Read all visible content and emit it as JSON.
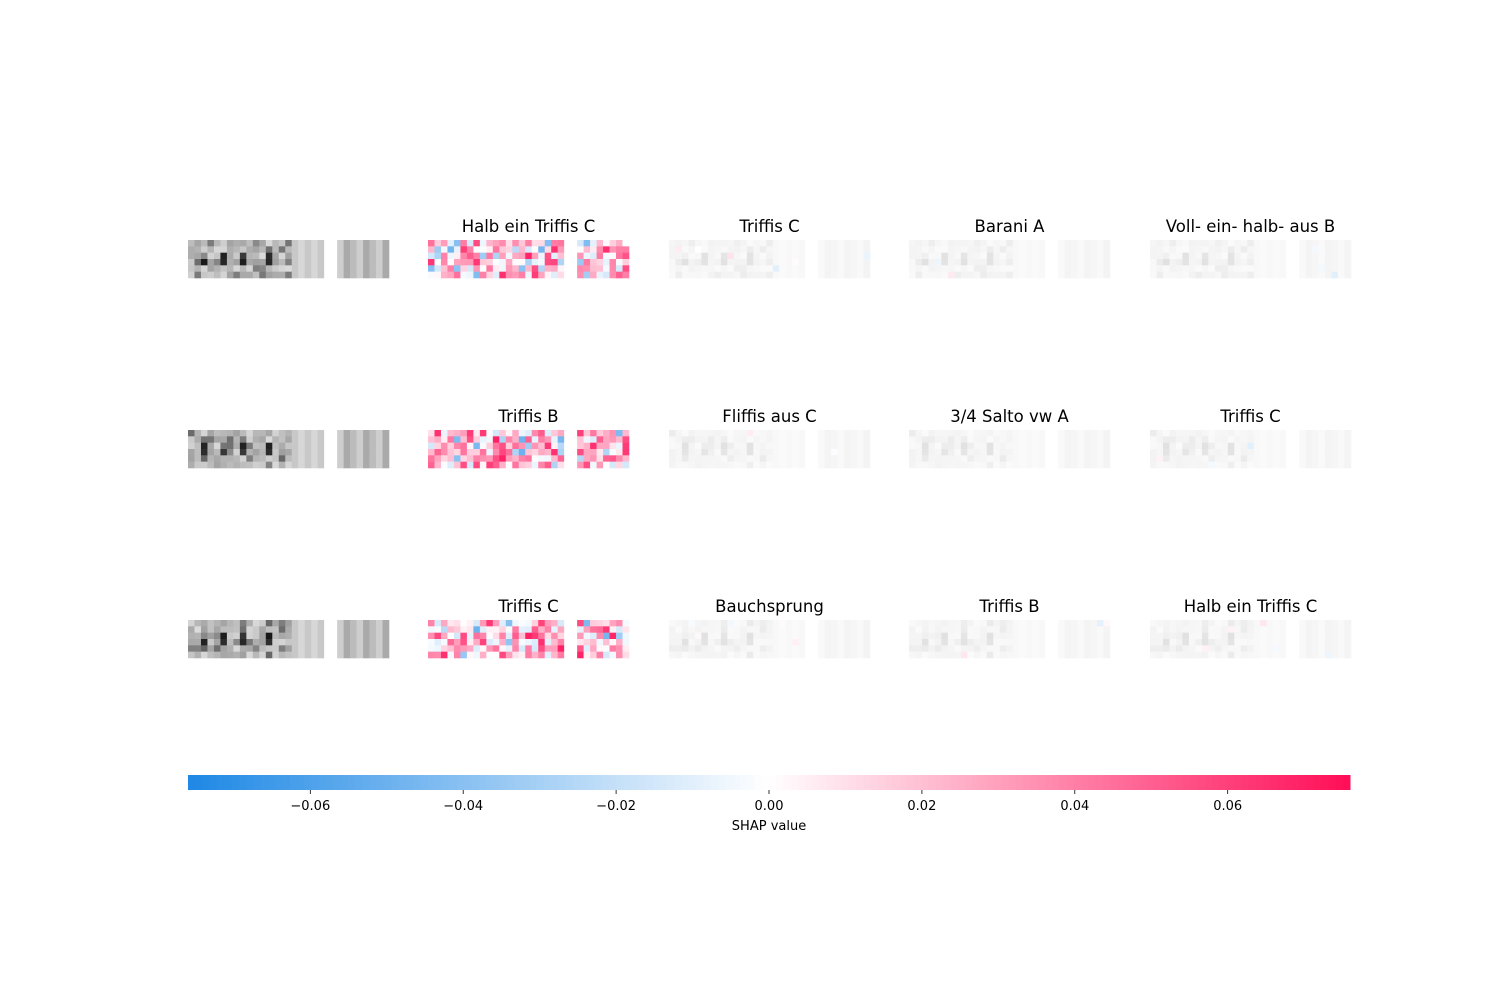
{
  "chart_data": {
    "type": "heatmap",
    "description_type": "shap-image-plot",
    "rows": [
      {
        "input_image": "row-1-input",
        "panel_titles": [
          "Halb ein Triffis C",
          "Triffis C",
          "Barani A",
          "Voll- ein- halb- aus B"
        ]
      },
      {
        "input_image": "row-2-input",
        "panel_titles": [
          "Triffis B",
          "Fliffis aus C",
          "3/4 Salto vw A",
          "Triffis C"
        ]
      },
      {
        "input_image": "row-3-input",
        "panel_titles": [
          "Triffis C",
          "Bauchsprung",
          "Triffis B",
          "Halb ein Triffis C"
        ]
      }
    ],
    "colorbar": {
      "label": "SHAP value",
      "vmin": -0.076,
      "vmax": 0.076,
      "ticks": [
        -0.06,
        -0.04,
        -0.02,
        0.0,
        0.02,
        0.04,
        0.06
      ],
      "tick_labels": [
        "−0.06",
        "−0.04",
        "−0.02",
        "0.00",
        "0.02",
        "0.04",
        "0.06"
      ],
      "colormap_low": "#1e88e5",
      "colormap_mid": "#ffffff",
      "colormap_high": "#ff0d57"
    }
  }
}
